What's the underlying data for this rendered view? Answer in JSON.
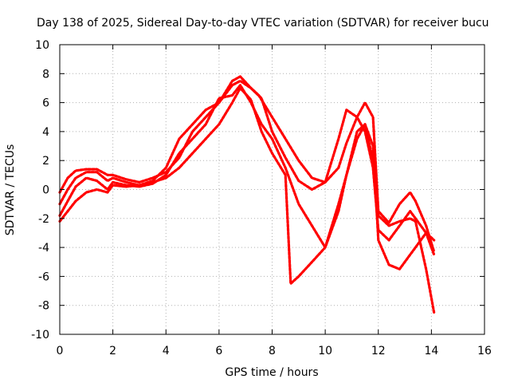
{
  "chart_data": {
    "type": "line",
    "title": "Day 138 of 2025, Sidereal Day-to-day VTEC variation (SDTVAR) for receiver bucu",
    "xlabel": "GPS time / hours",
    "ylabel": "SDTVAR / TECUs",
    "xlim": [
      0,
      16
    ],
    "ylim": [
      -10,
      10
    ],
    "xticks": [
      "0",
      "2",
      "4",
      "6",
      "8",
      "10",
      "12",
      "14",
      "16"
    ],
    "yticks": [
      "10",
      "8",
      "6",
      "4",
      "2",
      "0",
      "-2",
      "-4",
      "-6",
      "-8",
      "-10"
    ],
    "grid": true,
    "marker": "+",
    "color": "#ff0000",
    "series": [
      {
        "name": "trace-1",
        "x": [
          0,
          0.3,
          0.6,
          1.0,
          1.4,
          1.8,
          2.0,
          2.5,
          3.0,
          3.5,
          4.0,
          4.5,
          5.0,
          5.5,
          6.0,
          6.5,
          6.8,
          7.2,
          7.5,
          8.0,
          8.5,
          9.0,
          9.5,
          10.0,
          10.5,
          10.8,
          11.2,
          11.5,
          11.8,
          12.0,
          12.4,
          12.8,
          13.2,
          13.4,
          13.8,
          14.1
        ],
        "y": [
          -0.2,
          0.8,
          1.3,
          1.4,
          1.4,
          1.0,
          1.0,
          0.7,
          0.5,
          0.8,
          1.2,
          2.2,
          4.0,
          5.0,
          6.0,
          7.5,
          7.8,
          7.0,
          6.5,
          5.0,
          3.5,
          2.0,
          0.8,
          0.5,
          1.5,
          3.2,
          5.0,
          6.0,
          5.0,
          -1.5,
          -2.3,
          -1.0,
          -0.2,
          -0.8,
          -2.5,
          -4.3
        ]
      },
      {
        "name": "trace-2",
        "x": [
          0,
          0.3,
          0.6,
          1.0,
          1.4,
          1.8,
          2.0,
          2.5,
          3.0,
          3.5,
          4.0,
          4.5,
          5.0,
          5.5,
          6.0,
          6.5,
          6.8,
          7.2,
          7.6,
          8.0,
          8.5,
          9.0,
          9.5,
          10.0,
          10.5,
          10.8,
          11.2,
          11.5,
          11.8,
          12.0,
          12.4,
          12.8,
          13.2,
          13.4,
          13.8,
          14.1
        ],
        "y": [
          -1.0,
          0.0,
          0.8,
          1.2,
          1.2,
          0.6,
          0.8,
          0.5,
          0.3,
          0.6,
          1.5,
          3.5,
          4.5,
          5.5,
          6.0,
          7.2,
          7.5,
          7.0,
          6.3,
          4.0,
          2.2,
          0.6,
          0.0,
          0.5,
          3.5,
          5.5,
          5.0,
          4.0,
          1.5,
          -2.8,
          -3.5,
          -2.5,
          -1.5,
          -2.0,
          -3.0,
          -4.5
        ]
      },
      {
        "name": "trace-3",
        "x": [
          0,
          0.3,
          0.6,
          1.0,
          1.4,
          1.8,
          2.0,
          2.5,
          3.0,
          3.5,
          4.0,
          4.5,
          5.0,
          5.5,
          6.0,
          6.5,
          6.8,
          7.2,
          7.6,
          8.0,
          8.5,
          9.0,
          9.5,
          10.0,
          10.5,
          10.8,
          11.2,
          11.5,
          11.8,
          12.0,
          12.4,
          12.8,
          13.2,
          13.4,
          13.8,
          14.1
        ],
        "y": [
          -1.8,
          -0.8,
          0.2,
          0.8,
          0.6,
          0.0,
          0.5,
          0.3,
          0.2,
          0.4,
          1.0,
          2.5,
          3.5,
          4.5,
          6.3,
          6.5,
          7.2,
          6.0,
          4.5,
          3.5,
          1.5,
          -1.0,
          -2.5,
          -4.0,
          -1.0,
          1.0,
          3.5,
          4.5,
          3.0,
          -3.5,
          -5.2,
          -5.5,
          -4.5,
          -4.0,
          -3.0,
          -3.5
        ]
      },
      {
        "name": "trace-4",
        "x": [
          0,
          0.3,
          0.6,
          1.0,
          1.4,
          1.8,
          2.0,
          2.5,
          3.0,
          3.5,
          4.0,
          4.5,
          5.0,
          5.5,
          6.0,
          6.5,
          6.8,
          7.2,
          7.6,
          8.0,
          8.5,
          8.7,
          9.0,
          9.5,
          10.0,
          10.5,
          10.8,
          11.2,
          11.5,
          11.8,
          12.0,
          12.4,
          12.8,
          13.2,
          13.4,
          13.8,
          14.1
        ],
        "y": [
          -2.2,
          -1.5,
          -0.8,
          -0.2,
          0.0,
          -0.2,
          0.3,
          0.2,
          0.3,
          0.5,
          0.8,
          1.5,
          2.5,
          3.5,
          4.5,
          6.0,
          7.0,
          6.2,
          4.0,
          2.5,
          1.0,
          -6.5,
          -6.0,
          -5.0,
          -4.0,
          -1.5,
          1.0,
          4.0,
          4.5,
          2.0,
          -1.8,
          -2.5,
          -2.2,
          -2.0,
          -2.2,
          -5.5,
          -8.5
        ]
      }
    ]
  }
}
